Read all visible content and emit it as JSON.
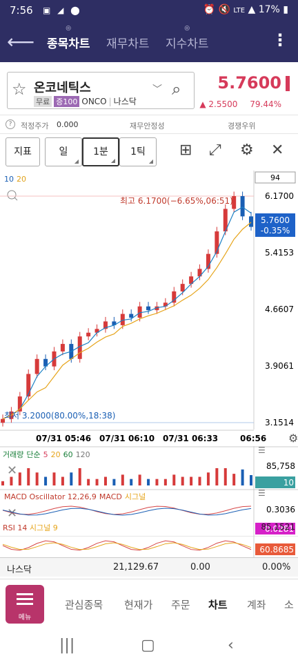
{
  "status_bar": {
    "time": "7:56",
    "battery": "17%",
    "network": "LTE"
  },
  "app_bar": {
    "tabs": [
      {
        "label": "종목차트",
        "active": true
      },
      {
        "label": "재무차트",
        "active": false
      },
      {
        "label": "지수차트",
        "active": false
      }
    ]
  },
  "stock": {
    "name": "온코네틱스",
    "tag_free": "무료",
    "tag_margin": "증100",
    "ticker": "ONCO",
    "exchange": "나스닥",
    "price": "5.7600",
    "change": "▲ 2.5500",
    "change_pct": "79.44%"
  },
  "info_row": {
    "fair_price_label": "적정주가",
    "fair_price_value": "0.000",
    "stability_label": "재무안정성",
    "competitive_label": "경쟁우위"
  },
  "toolbar": {
    "indicator_label": "지표",
    "day_label": "일",
    "minute_label": "1분",
    "tick_label": "1틱"
  },
  "chart": {
    "count_box": "94",
    "ma_label_10": "10",
    "ma_label_20": "20",
    "high_label": "최고 6.1700(−6.65%,06:51)",
    "low_label": "최저 3.2000(80.00%,18:38)",
    "price_tag": "5.7600",
    "price_tag_pct": "-0.35%",
    "y_ticks": [
      "6.1700",
      "5.4153",
      "4.6607",
      "3.9061",
      "3.1514"
    ],
    "time_ticks": [
      "07/31 05:46",
      "07/31 06:10",
      "07/31 06:33",
      "06:56"
    ],
    "volume_label": "거래량",
    "volume_type": "단순",
    "volume_ma": [
      "5",
      "20",
      "60",
      "120"
    ],
    "volume_max": "85,758",
    "volume_tag": "10",
    "macd_label": "MACD Oscillator 12,26,9",
    "macd_label2": "MACD",
    "macd_signal": "시그널",
    "macd_max": "0.3036",
    "macd_tag": "-0.0281",
    "rsi_label": "RSI 14",
    "rsi_signal": "시그널 9",
    "rsi_max": "85.1521",
    "rsi_tag": "60.8685"
  },
  "chart_data": {
    "type": "line",
    "title": "",
    "xlabel": "",
    "ylabel": "",
    "x_ticks": [
      "07/31 05:46",
      "07/31 06:10",
      "07/31 06:33",
      "06:56"
    ],
    "ylim": [
      3.1514,
      6.17
    ],
    "series": [
      {
        "values": [
          3.2,
          3.3,
          3.5,
          3.8,
          4.0,
          3.9,
          4.1,
          4.2,
          4.0,
          4.3,
          4.35,
          4.4,
          4.5,
          4.45,
          4.6,
          4.55,
          4.7,
          4.65,
          4.7,
          4.75,
          4.9,
          5.0,
          5.1,
          5.2,
          5.4,
          5.7,
          6.0,
          6.17,
          5.9,
          5.76
        ]
      }
    ]
  },
  "index_row": {
    "name": "나스닥",
    "value": "21,129.67",
    "change": "0.00",
    "pct": "0.00%"
  },
  "nav": {
    "menu_label": "메뉴",
    "items": [
      "관심종목",
      "현재가",
      "주문",
      "차트",
      "계좌",
      "소"
    ]
  }
}
